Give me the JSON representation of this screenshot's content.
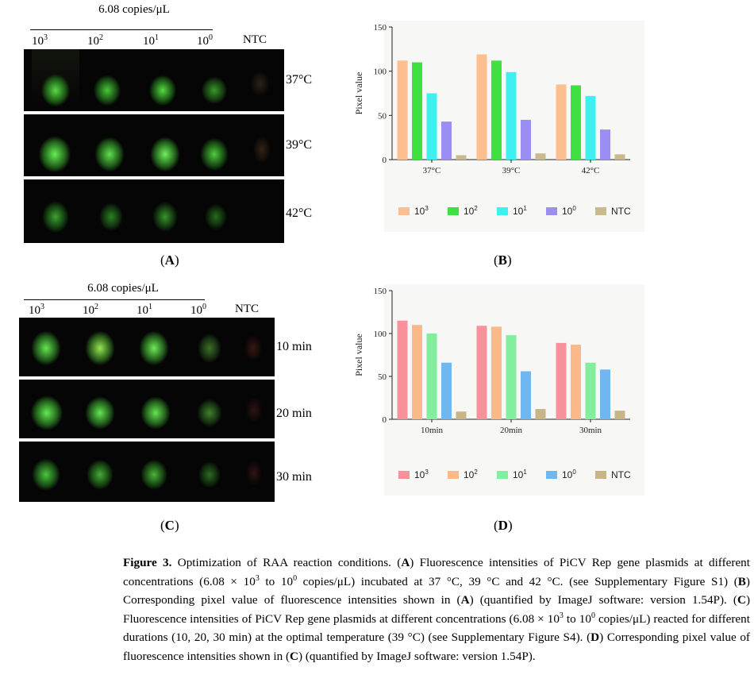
{
  "panelA": {
    "header": "6.08 copies/μL",
    "lanes": [
      {
        "base": "10",
        "exp": "3"
      },
      {
        "base": "10",
        "exp": "2"
      },
      {
        "base": "10",
        "exp": "1"
      },
      {
        "base": "10",
        "exp": "0"
      },
      {
        "base": "NTC",
        "exp": ""
      }
    ],
    "rows": [
      "37°C",
      "39°C",
      "42°C"
    ],
    "label": "A"
  },
  "panelC": {
    "header": "6.08 copies/μL",
    "lanes": [
      {
        "base": "10",
        "exp": "3"
      },
      {
        "base": "10",
        "exp": "2"
      },
      {
        "base": "10",
        "exp": "1"
      },
      {
        "base": "10",
        "exp": "0"
      },
      {
        "base": "NTC",
        "exp": ""
      }
    ],
    "rows": [
      "10 min",
      "20 min",
      "30 min"
    ],
    "label": "C"
  },
  "chart_data": [
    {
      "type": "bar",
      "panel": "B",
      "ylabel": "Pixel value",
      "ylim": [
        0,
        150
      ],
      "yticks": [
        0,
        50,
        100,
        150
      ],
      "categories": [
        "37°C",
        "39°C",
        "42°C"
      ],
      "series": [
        {
          "name": "10^3",
          "color": "#fdbf90",
          "values": [
            112,
            119,
            85
          ]
        },
        {
          "name": "10^2",
          "color": "#3fe03f",
          "values": [
            110,
            112,
            84
          ]
        },
        {
          "name": "10^1",
          "color": "#3ff0f0",
          "values": [
            75,
            99,
            72
          ]
        },
        {
          "name": "10^0",
          "color": "#9a8ef3",
          "values": [
            43,
            45,
            34
          ]
        },
        {
          "name": "NTC",
          "color": "#c9b98f",
          "values": [
            5,
            7,
            6
          ]
        }
      ],
      "legend_position": "bottom"
    },
    {
      "type": "bar",
      "panel": "D",
      "ylabel": "Pixel value",
      "ylim": [
        0,
        150
      ],
      "yticks": [
        0,
        50,
        100,
        150
      ],
      "categories": [
        "10min",
        "20min",
        "30min"
      ],
      "series": [
        {
          "name": "10^3",
          "color": "#f7929a",
          "values": [
            115,
            109,
            89
          ]
        },
        {
          "name": "10^2",
          "color": "#fbb98a",
          "values": [
            110,
            108,
            87
          ]
        },
        {
          "name": "10^1",
          "color": "#82ee9e",
          "values": [
            100,
            98,
            66
          ]
        },
        {
          "name": "10^0",
          "color": "#70b7f0",
          "values": [
            66,
            56,
            58
          ]
        },
        {
          "name": "NTC",
          "color": "#c7b588",
          "values": [
            9,
            12,
            10
          ]
        }
      ],
      "legend_position": "bottom"
    }
  ],
  "panelB_label": "B",
  "panelD_label": "D",
  "caption": {
    "title": "Figure 3.",
    "t1": " Optimization of RAA reaction conditions. (",
    "A1": "A",
    "t2": ") Fluorescence intensities of PiCV Rep gene plasmids at different concentrations (6.08 × 10",
    "s1": "3",
    "t3": " to 10",
    "s2": "0",
    "t4": " copies/μL) incubated at 37 °C, 39 °C and 42 °C. (see Supplementary Figure S1) (",
    "B1": "B",
    "t5": ") Corresponding pixel value of fluorescence intensities shown in (",
    "A2": "A",
    "t6": ") (quantified by ImageJ software: version 1.54P). (",
    "C1": "C",
    "t7": ") Fluorescence intensities of PiCV Rep gene plasmids at different concentrations (6.08 × 10",
    "s3": "3",
    "t8": " to 10",
    "s4": "0",
    "t9": " copies/μL) reacted for different durations (10, 20, 30 min) at the optimal temperature (39 °C) (see Supplementary Figure S4). (",
    "D1": "D",
    "t10": ") Corresponding pixel value of fluorescence intensities shown in (",
    "C2": "C",
    "t11": ") (quantified by ImageJ software: version 1.54P)."
  }
}
